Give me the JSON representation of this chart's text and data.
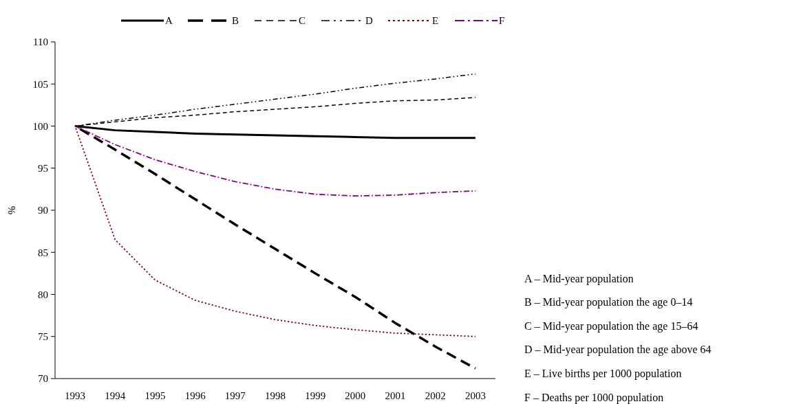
{
  "chart_data": {
    "type": "line",
    "ylabel": "%",
    "categories": [
      "1993",
      "1994",
      "1995",
      "1996",
      "1997",
      "1998",
      "1999",
      "2000",
      "2001",
      "2002",
      "2003"
    ],
    "series": [
      {
        "name": "A",
        "color": "#000000",
        "line_style": "solid",
        "values": [
          100,
          99.5,
          99.3,
          99.1,
          99.0,
          98.9,
          98.8,
          98.7,
          98.6,
          98.6,
          98.6
        ]
      },
      {
        "name": "B",
        "color": "#000000",
        "line_style": "dashed",
        "values": [
          100,
          97.2,
          94.3,
          91.3,
          88.3,
          85.4,
          82.5,
          79.7,
          76.6,
          73.8,
          71.2
        ]
      },
      {
        "name": "C",
        "color": "#000000",
        "line_style": "dashed",
        "values": [
          100,
          100.5,
          101,
          101.3,
          101.7,
          102,
          102.3,
          102.7,
          103,
          103.1,
          103.4
        ]
      },
      {
        "name": "D",
        "color": "#000000",
        "line_style": "dashed",
        "values": [
          100,
          100.7,
          101.3,
          102,
          102.6,
          103.2,
          103.8,
          104.5,
          105.1,
          105.6,
          106.2
        ]
      },
      {
        "name": "E",
        "color": "#800000",
        "line_style": "dotted",
        "values": [
          100,
          86.5,
          81.7,
          79.3,
          78,
          77,
          76.3,
          75.8,
          75.4,
          75.2,
          75.0
        ]
      },
      {
        "name": "F",
        "color": "#800080",
        "line_style": "dashed",
        "values": [
          100,
          97.8,
          96,
          94.6,
          93.4,
          92.5,
          91.9,
          91.7,
          91.8,
          92.1,
          92.3
        ]
      }
    ],
    "ylim": [
      70,
      110
    ],
    "yticks": [
      70,
      75,
      80,
      85,
      90,
      95,
      100,
      105,
      110
    ],
    "grid": false,
    "legend": "top",
    "marker": "none",
    "annotations": [
      "A – Mid-year population",
      "B – Mid-year population the age 0–14",
      "C – Mid-year population the age 15–64",
      "D – Mid-year population the age above 64",
      "E – Live births per 1000 population",
      "F – Deaths per 1000 population"
    ]
  }
}
